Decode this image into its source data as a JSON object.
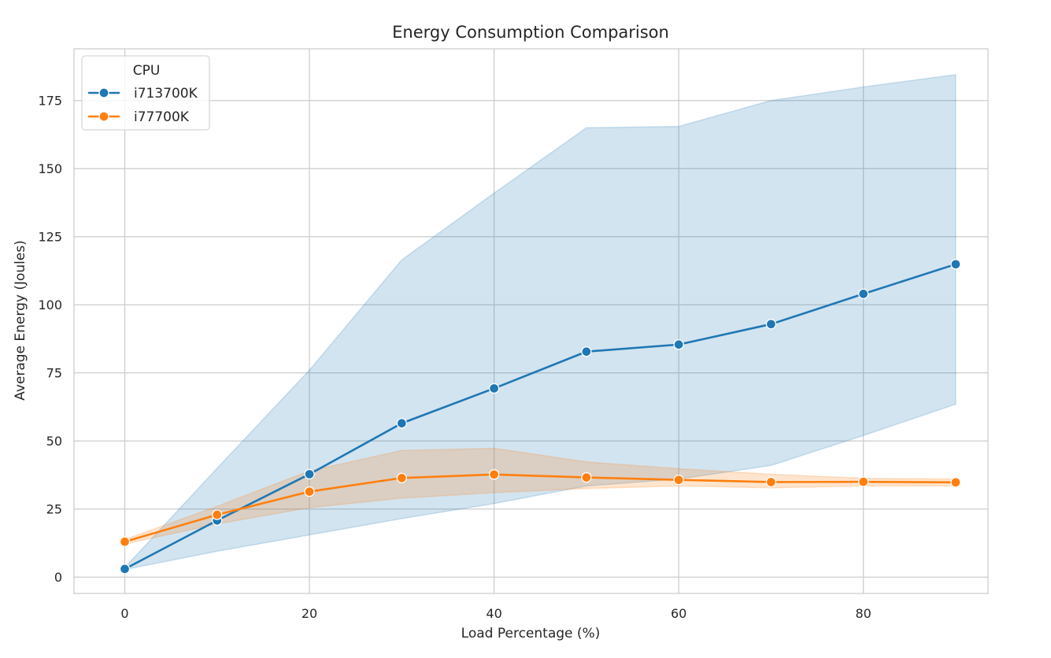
{
  "chart_data": {
    "type": "line",
    "title": "Energy Consumption Comparison",
    "xlabel": "Load Percentage (%)",
    "ylabel": "Average Energy (Joules)",
    "xlim": [
      -5.5,
      93.5
    ],
    "ylim": [
      -6,
      194
    ],
    "xticks": [
      0,
      20,
      40,
      60,
      80
    ],
    "yticks": [
      0,
      25,
      50,
      75,
      100,
      125,
      150,
      175
    ],
    "grid": true,
    "legend": {
      "title": "CPU",
      "placement": "top-left"
    },
    "x": [
      0,
      10,
      20,
      30,
      40,
      50,
      60,
      70,
      80,
      90
    ],
    "series": [
      {
        "name": "i713700K",
        "color": "#1f77b4",
        "values": [
          3,
          20.8,
          37.8,
          56.5,
          69.3,
          82.8,
          85.4,
          92.9,
          104,
          114.9
        ],
        "ci_upper": [
          3.5,
          40,
          76,
          116.5,
          141,
          165,
          165.5,
          175,
          180,
          184.5
        ],
        "ci_lower": [
          2.8,
          9.5,
          15.5,
          21.5,
          27,
          33.5,
          36,
          41,
          52,
          63.5
        ]
      },
      {
        "name": "i77700K",
        "color": "#ff7f0e",
        "values": [
          13,
          22.9,
          31.4,
          36.4,
          37.7,
          36.6,
          35.7,
          34.9,
          35,
          34.8
        ],
        "ci_upper": [
          13.8,
          26,
          39,
          46.5,
          47.3,
          42.3,
          39.8,
          37.8,
          36.3,
          36
        ],
        "ci_lower": [
          12.2,
          19.5,
          25.5,
          29,
          31,
          32.5,
          33.5,
          32.8,
          33.5,
          33.5
        ]
      }
    ]
  }
}
